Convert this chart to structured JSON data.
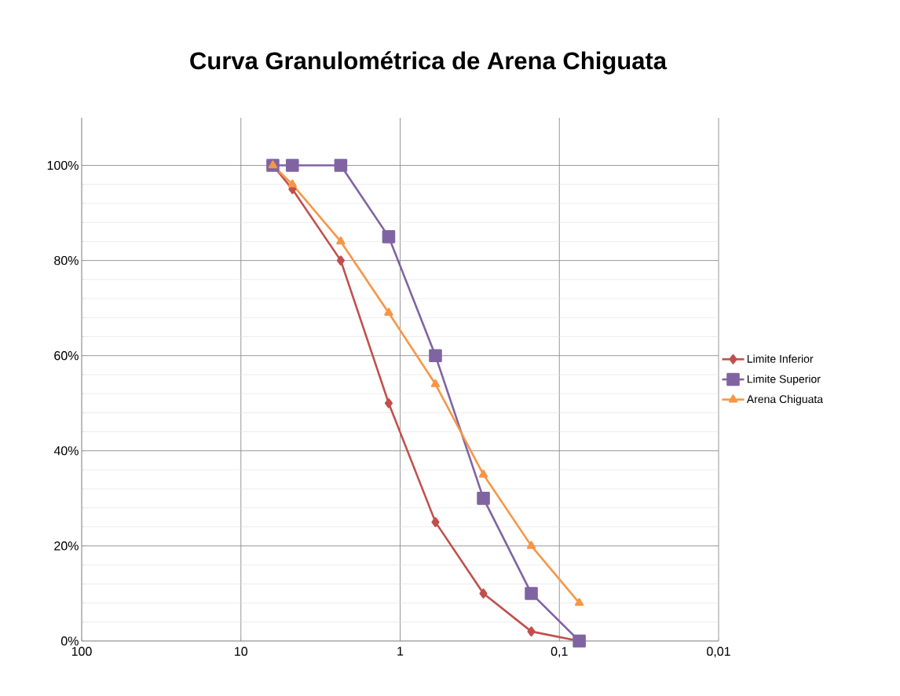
{
  "chart_data": {
    "type": "line",
    "title": "Curva Granulométrica de Arena Chiguata",
    "x": [
      6.3,
      4.75,
      2.36,
      1.18,
      0.6,
      0.3,
      0.15,
      0.075
    ],
    "series": [
      {
        "name": "Limite Inferior",
        "color": "#c0504d",
        "marker": "diamond",
        "values": [
          100,
          95,
          80,
          50,
          25,
          10,
          2,
          0
        ]
      },
      {
        "name": "Limite Superior",
        "color": "#8064a2",
        "marker": "square",
        "values": [
          100,
          100,
          100,
          85,
          60,
          30,
          10,
          0
        ]
      },
      {
        "name": "Arena Chiguata",
        "color": "#f79646",
        "marker": "triangle",
        "values": [
          100,
          96,
          84,
          69,
          54,
          35,
          20,
          8
        ]
      }
    ],
    "log": "x",
    "xlim": [
      100,
      0.01
    ],
    "xticks": [
      100,
      10,
      1,
      {
        "value": 0.1,
        "label": "0,1"
      },
      {
        "value": 0.01,
        "label": "0,01"
      }
    ],
    "ylim": [
      0,
      110
    ],
    "yticks": [
      {
        "value": 0,
        "label": "0%"
      },
      {
        "value": 20,
        "label": "20%"
      },
      {
        "value": 40,
        "label": "40%"
      },
      {
        "value": 60,
        "label": "60%"
      },
      {
        "value": 80,
        "label": "80%"
      },
      {
        "value": 100,
        "label": "100%"
      }
    ],
    "grid": true,
    "legend": "right",
    "line_style": "solid"
  }
}
